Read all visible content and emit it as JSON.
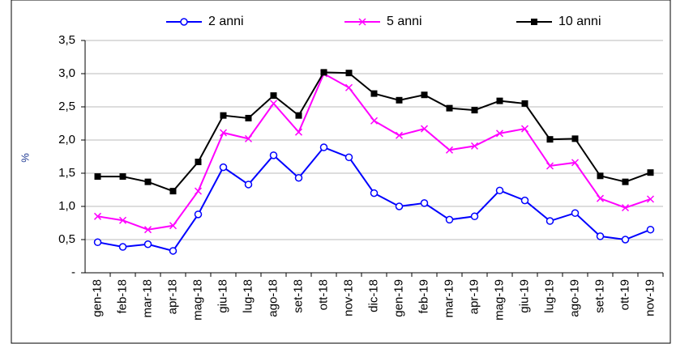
{
  "chart_data": {
    "type": "line",
    "y_label": "%",
    "categories": [
      "gen-18",
      "feb-18",
      "mar-18",
      "apr-18",
      "mag-18",
      "giu-18",
      "lug-18",
      "ago-18",
      "set-18",
      "ott-18",
      "nov-18",
      "dic-18",
      "gen-19",
      "feb-19",
      "mar-19",
      "apr-19",
      "mag-19",
      "giu-19",
      "lug-19",
      "ago-19",
      "set-19",
      "ott-19",
      "nov-19"
    ],
    "series": [
      {
        "name": "2 anni",
        "color": "#0000ff",
        "marker": "circle",
        "values": [
          0.46,
          0.39,
          0.43,
          0.33,
          0.88,
          1.59,
          1.33,
          1.77,
          1.43,
          1.89,
          1.74,
          1.2,
          1.0,
          1.05,
          0.8,
          0.85,
          1.24,
          1.09,
          0.78,
          0.9,
          0.55,
          0.5,
          0.65
        ]
      },
      {
        "name": "5 anni",
        "color": "#ff00ff",
        "marker": "x",
        "values": [
          0.85,
          0.79,
          0.65,
          0.71,
          1.23,
          2.11,
          2.02,
          2.55,
          2.12,
          3.0,
          2.79,
          2.29,
          2.07,
          2.17,
          1.85,
          1.91,
          2.1,
          2.17,
          1.61,
          1.66,
          1.12,
          0.98,
          1.11
        ]
      },
      {
        "name": "10 anni",
        "color": "#000000",
        "marker": "square",
        "values": [
          1.45,
          1.45,
          1.37,
          1.23,
          1.67,
          2.37,
          2.33,
          2.67,
          2.37,
          3.02,
          3.01,
          2.7,
          2.6,
          2.68,
          2.48,
          2.45,
          2.59,
          2.55,
          2.01,
          2.02,
          1.46,
          1.37,
          1.51
        ]
      }
    ],
    "ylim": [
      0,
      3.5
    ],
    "yticks": [
      {
        "value": 0,
        "label": "-"
      },
      {
        "value": 0.5,
        "label": "0,5"
      },
      {
        "value": 1,
        "label": "1,0"
      },
      {
        "value": 1.5,
        "label": "1,5"
      },
      {
        "value": 2,
        "label": "2,0"
      },
      {
        "value": 2.5,
        "label": "2,5"
      },
      {
        "value": 3,
        "label": "3,0"
      },
      {
        "value": 3.5,
        "label": "3,5"
      }
    ],
    "grid": true,
    "legend": "top"
  }
}
